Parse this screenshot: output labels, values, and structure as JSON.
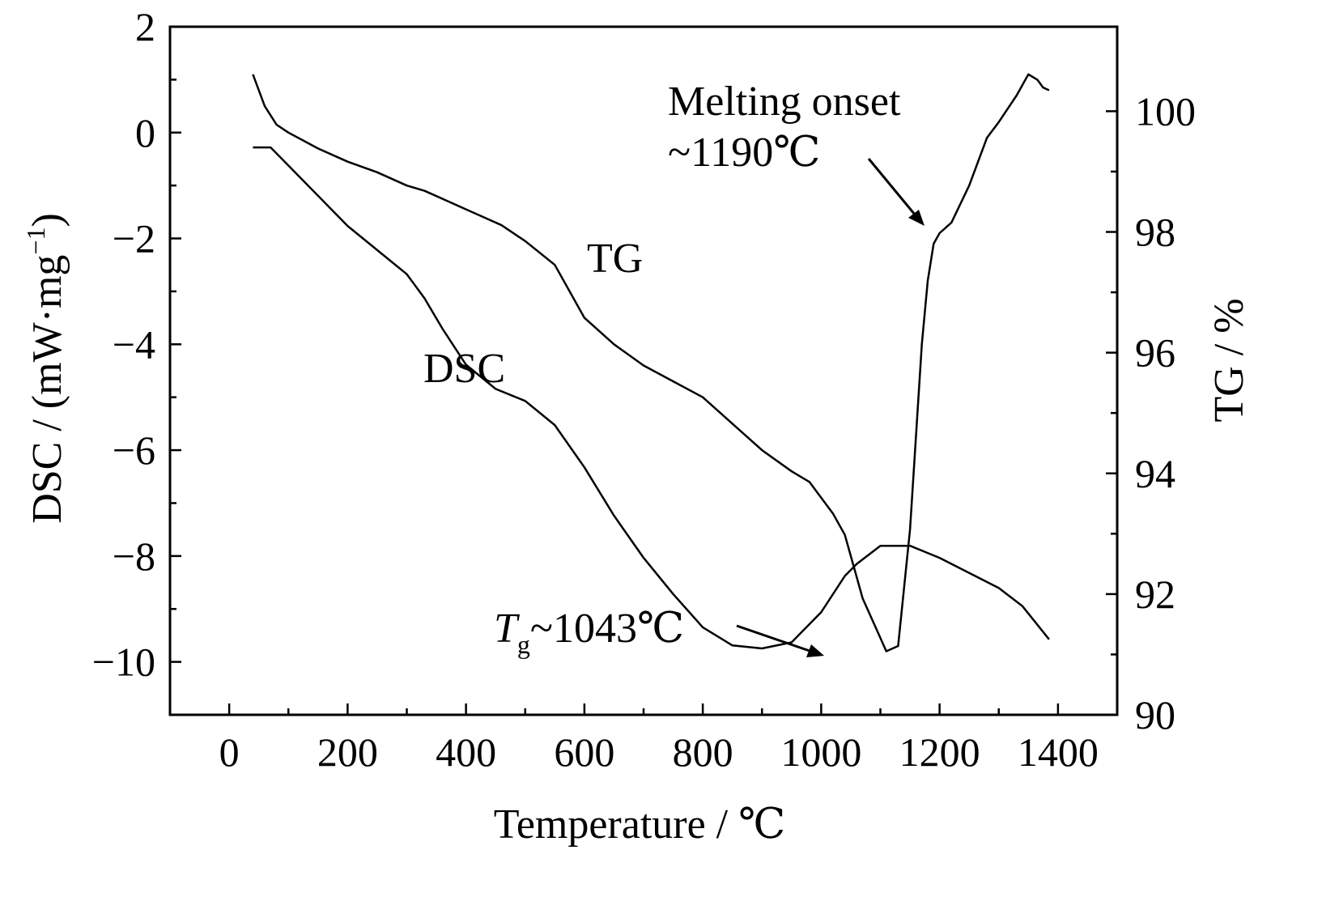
{
  "chart_data": {
    "type": "line",
    "title": "",
    "xlabel": "Temperature / ℃",
    "ylabel_left": "DSC / (mW·mg",
    "ylabel_left_sup": "−1",
    "ylabel_left_end": ")",
    "ylabel_right": "TG / %",
    "xlim": [
      -100,
      1500
    ],
    "ylim_left": [
      -11,
      2
    ],
    "ylim_right": [
      90,
      101.4
    ],
    "x_ticks": [
      {
        "value": 0,
        "label": "0"
      },
      {
        "value": 200,
        "label": "200"
      },
      {
        "value": 400,
        "label": "400"
      },
      {
        "value": 600,
        "label": "600"
      },
      {
        "value": 800,
        "label": "800"
      },
      {
        "value": 1000,
        "label": "1000"
      },
      {
        "value": 1200,
        "label": "1200"
      },
      {
        "value": 1400,
        "label": "1400"
      }
    ],
    "x_minor_ticks": [
      100,
      300,
      500,
      700,
      900,
      1100,
      1300
    ],
    "y_left_ticks": [
      {
        "value": 2,
        "label": "2"
      },
      {
        "value": 0,
        "label": "0"
      },
      {
        "value": -2,
        "label": "−2"
      },
      {
        "value": -4,
        "label": "−4"
      },
      {
        "value": -6,
        "label": "−6"
      },
      {
        "value": -8,
        "label": "−8"
      },
      {
        "value": -10,
        "label": "−10"
      }
    ],
    "y_left_minor_ticks": [
      1,
      -1,
      -3,
      -5,
      -7,
      -9
    ],
    "y_right_ticks": [
      {
        "value": 100,
        "label": "100"
      },
      {
        "value": 98,
        "label": "98"
      },
      {
        "value": 96,
        "label": "96"
      },
      {
        "value": 94,
        "label": "94"
      },
      {
        "value": 92,
        "label": "92"
      },
      {
        "value": 90,
        "label": "90"
      }
    ],
    "y_right_minor_ticks": [
      99,
      97,
      95,
      93,
      91
    ],
    "series": [
      {
        "name": "DSC",
        "axis": "left",
        "x": [
          40,
          50,
          60,
          80,
          100,
          150,
          200,
          250,
          300,
          330,
          360,
          400,
          430,
          460,
          500,
          550,
          600,
          650,
          700,
          750,
          800,
          850,
          900,
          950,
          980,
          1000,
          1020,
          1040,
          1055,
          1070,
          1090,
          1110,
          1130,
          1150,
          1170,
          1180,
          1190,
          1200,
          1220,
          1250,
          1280,
          1300,
          1330,
          1350,
          1365,
          1375,
          1385
        ],
        "y": [
          1.1,
          0.8,
          0.5,
          0.15,
          0,
          -0.3,
          -0.55,
          -0.75,
          -1.0,
          -1.1,
          -1.25,
          -1.45,
          -1.6,
          -1.75,
          -2.05,
          -2.5,
          -3.5,
          -4.0,
          -4.4,
          -4.7,
          -5.0,
          -5.5,
          -6.0,
          -6.4,
          -6.6,
          -6.9,
          -7.2,
          -7.6,
          -8.2,
          -8.8,
          -9.3,
          -9.8,
          -9.7,
          -7.5,
          -4.0,
          -2.8,
          -2.1,
          -1.9,
          -1.7,
          -1.0,
          -0.1,
          0.2,
          0.7,
          1.1,
          1.0,
          0.85,
          0.8
        ]
      },
      {
        "name": "TG",
        "axis": "right",
        "x": [
          40,
          70,
          100,
          150,
          200,
          250,
          300,
          330,
          360,
          400,
          450,
          500,
          550,
          600,
          650,
          700,
          750,
          800,
          850,
          900,
          950,
          1000,
          1040,
          1060,
          1100,
          1150,
          1200,
          1250,
          1300,
          1340,
          1385
        ],
        "y": [
          99.4,
          99.4,
          99.1,
          98.6,
          98.1,
          97.7,
          97.3,
          96.9,
          96.4,
          95.8,
          95.4,
          95.2,
          94.8,
          94.1,
          93.3,
          92.6,
          92.0,
          91.45,
          91.15,
          91.1,
          91.2,
          91.7,
          92.3,
          92.5,
          92.8,
          92.8,
          92.6,
          92.35,
          92.1,
          91.8,
          91.25
        ]
      }
    ],
    "annotations": {
      "tg_label": "TG",
      "dsc_label": "DSC",
      "melting_line1": "Melting onset",
      "melting_line2": "~1190℃",
      "tg_glass_symbol": "T",
      "tg_glass_sub": "g",
      "tg_glass_value": "~1043℃"
    },
    "grid": false
  }
}
